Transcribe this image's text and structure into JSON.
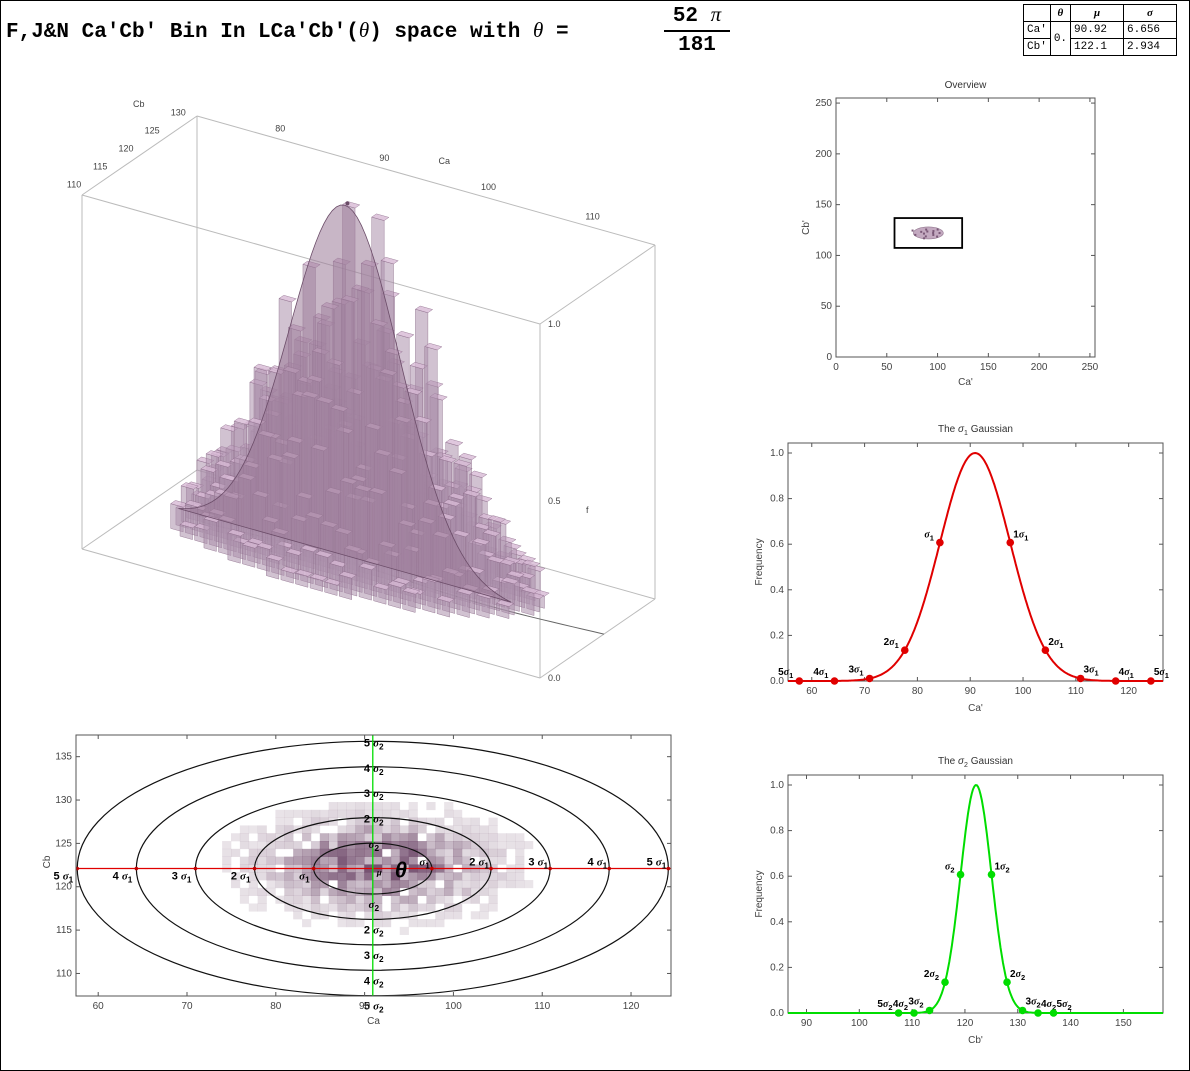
{
  "header": {
    "title": "F,J&N Ca'Cb' Bin In LCa'Cb'(",
    "theta_symbol": "θ",
    "title_mid": ") space with ",
    "title_eq": " =",
    "frac_num": "52",
    "frac_pi": "π",
    "frac_den": "181"
  },
  "stats_table": {
    "headers": [
      "θ",
      "μ",
      "σ"
    ],
    "rows": [
      {
        "label": "Ca'",
        "mu": "90.92",
        "sigma": "6.656"
      },
      {
        "label": "Cb'",
        "mu": "122.1",
        "sigma": "2.934"
      }
    ],
    "theta_value": "0."
  },
  "chart_data": [
    {
      "type": "bar",
      "id": "histogram-3d",
      "axes": {
        "ca_label": "Ca",
        "ca_ticks": [
          "80",
          "90",
          "100",
          "110"
        ],
        "cb_label": "Cb",
        "cb_ticks": [
          "110",
          "115",
          "120",
          "125",
          "130"
        ],
        "f_label": "f",
        "f_ticks": [
          "0.0",
          "0.5",
          "1.0"
        ],
        "zlim": [
          0,
          1
        ]
      },
      "ca_mean": 90.92,
      "ca_sigma": 6.656,
      "cb_mean": 122.1,
      "cb_sigma": 2.934,
      "colors": {
        "bars": "#ab8fab",
        "surface": "#9a7a98"
      }
    },
    {
      "type": "scatter",
      "id": "overview",
      "title": "Overview",
      "xlabel": "Ca'",
      "ylabel": "Cb'",
      "xlim": [
        0,
        255
      ],
      "ylim": [
        0,
        255
      ],
      "xticks": [
        "0",
        "50",
        "100",
        "150",
        "200",
        "250"
      ],
      "yticks": [
        "0",
        "50",
        "100",
        "150",
        "200",
        "250"
      ],
      "cluster_center": [
        90.92,
        122.1
      ],
      "box": {
        "x0": 57.6,
        "x1": 124.2,
        "y0": 107.4,
        "y1": 136.8
      }
    },
    {
      "type": "line",
      "id": "sigma1-gaussian",
      "title": "The σ₁ Gaussian",
      "title_text": "The ",
      "title_sym": "σ",
      "title_sub": "1",
      "title_tail": " Gaussian",
      "xlabel": "Ca'",
      "ylabel": "Frequency",
      "xlim": [
        55.5,
        126.5
      ],
      "ylim": [
        0,
        1.0
      ],
      "xticks": [
        "60",
        "70",
        "80",
        "90",
        "100",
        "110",
        "120"
      ],
      "yticks": [
        "0.0",
        "0.2",
        "0.4",
        "0.6",
        "0.8",
        "1.0"
      ],
      "mean": 90.92,
      "sigma": 6.656,
      "color": "#e00000",
      "points": [
        {
          "x": 57.64,
          "y": 0.0,
          "label": "5σ₁"
        },
        {
          "x": 64.3,
          "y": 0.0,
          "label": "4σ₁"
        },
        {
          "x": 70.95,
          "y": 0.011,
          "label": "3σ₁"
        },
        {
          "x": 77.61,
          "y": 0.135,
          "label": "2σ₁"
        },
        {
          "x": 84.26,
          "y": 0.607,
          "label": "σ₁"
        },
        {
          "x": 97.58,
          "y": 0.607,
          "label": "1σ₁"
        },
        {
          "x": 104.23,
          "y": 0.135,
          "label": "2σ₁"
        },
        {
          "x": 110.89,
          "y": 0.011,
          "label": "3σ₁"
        },
        {
          "x": 117.54,
          "y": 0.0,
          "label": "4σ₁"
        },
        {
          "x": 124.2,
          "y": 0.0,
          "label": "5σ₁"
        }
      ]
    },
    {
      "type": "line",
      "id": "sigma2-gaussian",
      "title": "The σ₂ Gaussian",
      "title_text": "The ",
      "title_sym": "σ",
      "title_sub": "2",
      "title_tail": " Gaussian",
      "xlabel": "Cb'",
      "ylabel": "Frequency",
      "xlim": [
        86.5,
        157.5
      ],
      "ylim": [
        0,
        1.0
      ],
      "xticks": [
        "90",
        "100",
        "110",
        "120",
        "130",
        "140",
        "150"
      ],
      "yticks": [
        "0.0",
        "0.2",
        "0.4",
        "0.6",
        "0.8",
        "1.0"
      ],
      "mean": 122.1,
      "sigma": 2.934,
      "color": "#00dd00",
      "points": [
        {
          "x": 107.43,
          "y": 0.0,
          "label": "5σ₂"
        },
        {
          "x": 110.36,
          "y": 0.0,
          "label": "4σ₂"
        },
        {
          "x": 113.3,
          "y": 0.011,
          "label": "3σ₂"
        },
        {
          "x": 116.23,
          "y": 0.135,
          "label": "2σ₂"
        },
        {
          "x": 119.17,
          "y": 0.607,
          "label": "σ₂"
        },
        {
          "x": 125.03,
          "y": 0.607,
          "label": "1σ₂"
        },
        {
          "x": 127.97,
          "y": 0.135,
          "label": "2σ₂"
        },
        {
          "x": 130.9,
          "y": 0.011,
          "label": "3σ₂"
        },
        {
          "x": 133.84,
          "y": 0.0,
          "label": "4σ₂"
        },
        {
          "x": 136.77,
          "y": 0.0,
          "label": "5σ₂"
        }
      ]
    },
    {
      "type": "heatmap",
      "id": "binned-2d",
      "xlabel": "Ca",
      "ylabel": "Cb",
      "xlim": [
        57.5,
        124.5
      ],
      "ylim": [
        107.4,
        137.5
      ],
      "xticks": [
        "60",
        "70",
        "80",
        "90",
        "100",
        "110",
        "120"
      ],
      "yticks": [
        "110",
        "115",
        "120",
        "125",
        "130",
        "135"
      ],
      "mean": [
        90.92,
        122.1
      ],
      "sigma": [
        6.656,
        2.934
      ],
      "theta_label": "θ",
      "mu_label": "μ",
      "ellipse_levels": [
        1,
        2,
        3,
        4,
        5
      ],
      "x_ring_labels": [
        "σ₁",
        "2 σ₁",
        "3 σ₁",
        "4 σ₁",
        "5 σ₁"
      ],
      "y_ring_labels": [
        "σ₂",
        "2 σ₂",
        "3 σ₂",
        "4 σ₂",
        "5 σ₂"
      ],
      "major_axis_color": "#e00000",
      "minor_axis_color": "#00dd00",
      "cell_color": "#6b4466"
    }
  ]
}
